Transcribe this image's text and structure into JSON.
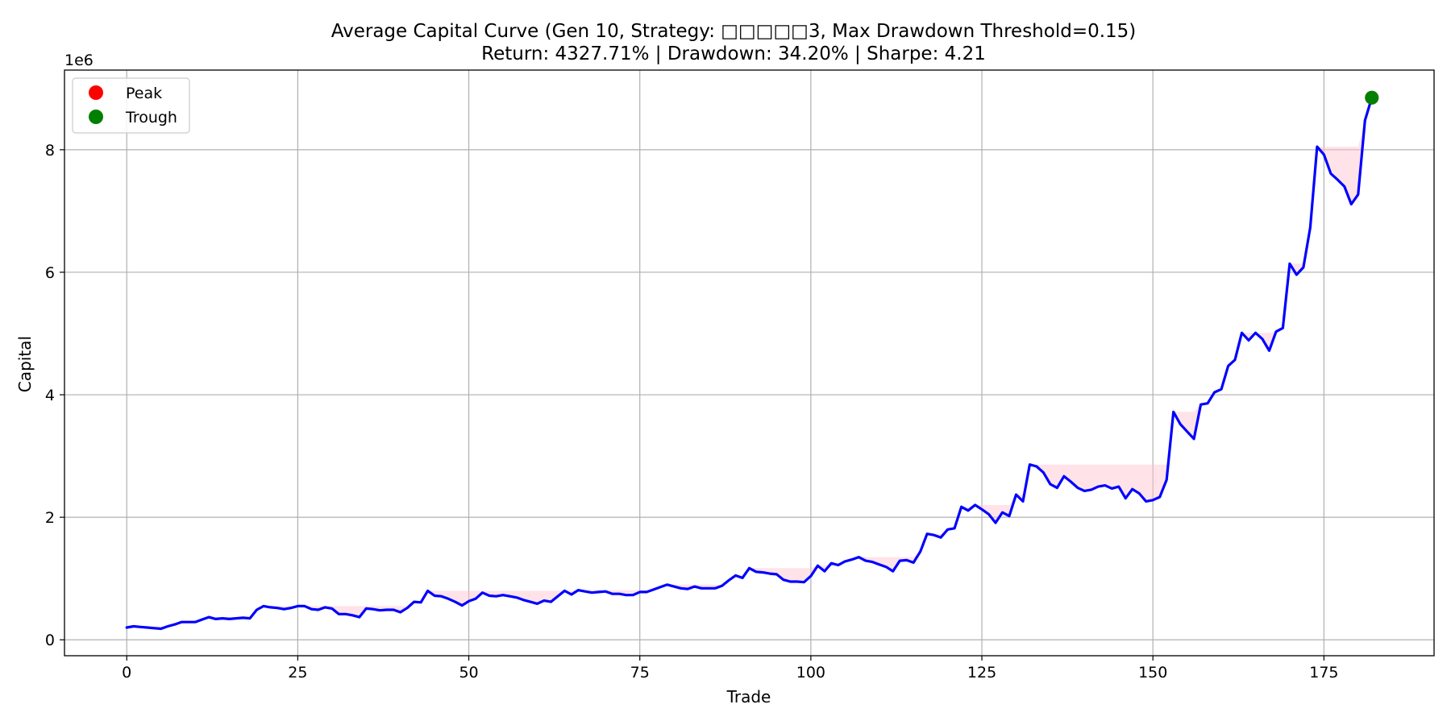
{
  "chart_data": {
    "type": "line",
    "title": "Average Capital Curve (Gen 10, Strategy: □□□□□3, Max Drawdown Threshold=0.15)",
    "subtitle": "Return: 4327.71% | Drawdown: 34.20% | Sharpe: 4.21",
    "xlabel": "Trade",
    "ylabel": "Capital",
    "y_offset_label": "1e6",
    "xlim": [
      -9.1,
      191.1
    ],
    "ylim": [
      -0.26,
      9.3
    ],
    "y_scale_note": "y values in units of 1e6",
    "x_ticks": [
      0,
      25,
      50,
      75,
      100,
      125,
      150,
      175
    ],
    "x_tick_labels": [
      "0",
      "25",
      "50",
      "75",
      "100",
      "125",
      "150",
      "175"
    ],
    "y_ticks": [
      0,
      2,
      4,
      6,
      8
    ],
    "y_tick_labels": [
      "0",
      "2",
      "4",
      "6",
      "8"
    ],
    "grid": true,
    "legend_position": "top-left",
    "legend": [
      {
        "label": "Peak",
        "color": "#ff0000"
      },
      {
        "label": "Trough",
        "color": "#008000"
      }
    ],
    "series": [
      {
        "color": "#0000ff",
        "values": [
          0.2,
          0.22,
          0.21,
          0.2,
          0.19,
          0.18,
          0.22,
          0.25,
          0.29,
          0.29,
          0.29,
          0.33,
          0.37,
          0.34,
          0.35,
          0.34,
          0.35,
          0.36,
          0.35,
          0.49,
          0.55,
          0.53,
          0.52,
          0.5,
          0.52,
          0.55,
          0.55,
          0.5,
          0.49,
          0.53,
          0.51,
          0.42,
          0.42,
          0.4,
          0.37,
          0.51,
          0.5,
          0.48,
          0.49,
          0.49,
          0.45,
          0.52,
          0.62,
          0.61,
          0.8,
          0.72,
          0.71,
          0.67,
          0.62,
          0.56,
          0.63,
          0.67,
          0.77,
          0.72,
          0.71,
          0.73,
          0.71,
          0.69,
          0.65,
          0.62,
          0.59,
          0.64,
          0.62,
          0.71,
          0.8,
          0.74,
          0.81,
          0.79,
          0.77,
          0.78,
          0.79,
          0.75,
          0.75,
          0.73,
          0.73,
          0.78,
          0.78,
          0.82,
          0.86,
          0.9,
          0.87,
          0.84,
          0.83,
          0.87,
          0.84,
          0.84,
          0.84,
          0.88,
          0.97,
          1.05,
          1.01,
          1.17,
          1.11,
          1.1,
          1.08,
          1.07,
          0.98,
          0.95,
          0.95,
          0.94,
          1.04,
          1.21,
          1.12,
          1.25,
          1.22,
          1.28,
          1.31,
          1.35,
          1.29,
          1.27,
          1.23,
          1.19,
          1.12,
          1.29,
          1.3,
          1.26,
          1.44,
          1.73,
          1.71,
          1.67,
          1.8,
          1.82,
          2.17,
          2.11,
          2.2,
          2.13,
          2.05,
          1.91,
          2.08,
          2.02,
          2.37,
          2.26,
          2.86,
          2.83,
          2.73,
          2.54,
          2.48,
          2.67,
          2.58,
          2.48,
          2.43,
          2.45,
          2.5,
          2.52,
          2.47,
          2.5,
          2.31,
          2.46,
          2.39,
          2.26,
          2.28,
          2.33,
          2.61,
          3.72,
          3.52,
          3.4,
          3.28,
          3.84,
          3.86,
          4.04,
          4.09,
          4.47,
          4.57,
          5.01,
          4.89,
          5.01,
          4.91,
          4.72,
          5.03,
          5.09,
          6.14,
          5.96,
          6.08,
          6.73,
          8.05,
          7.92,
          7.61,
          7.51,
          7.4,
          7.11,
          7.27,
          8.48,
          8.85
        ]
      }
    ],
    "drawdown_fill_color": "#ffc0cb",
    "markers": [
      {
        "label": "Peak",
        "x": 182,
        "y": 8.85,
        "color": "#ff0000"
      },
      {
        "label": "Trough",
        "x": 182,
        "y": 8.85,
        "color": "#008000"
      }
    ]
  }
}
